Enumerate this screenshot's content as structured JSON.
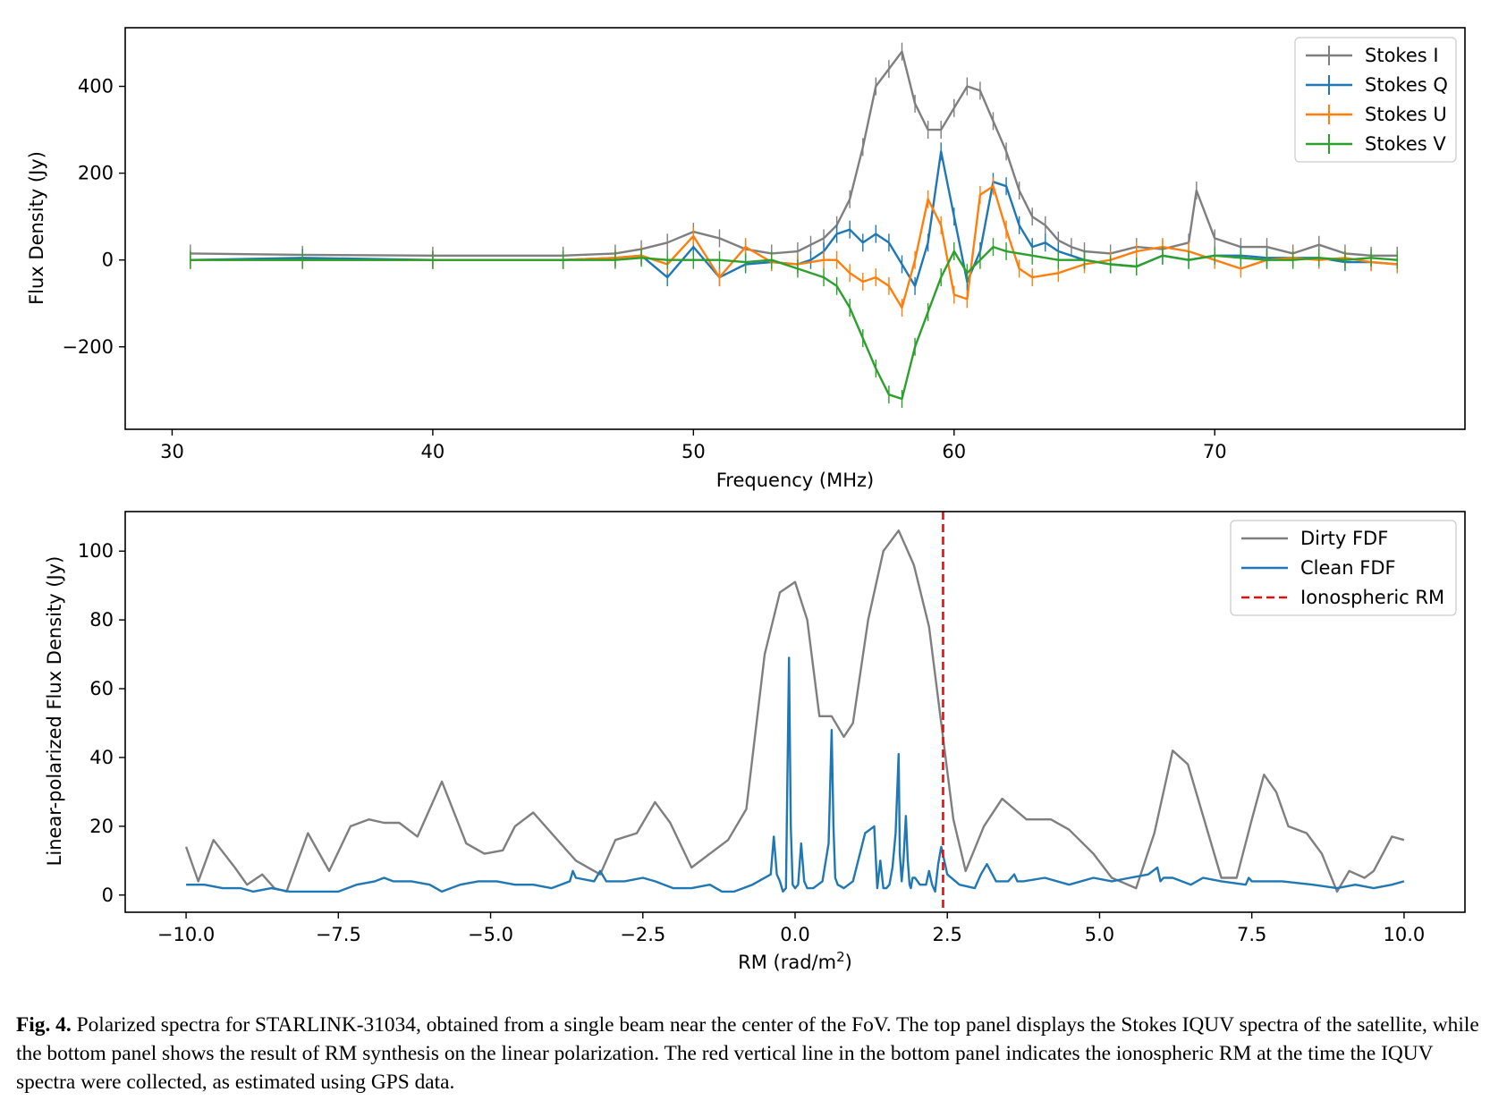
{
  "chart_data": [
    {
      "type": "line",
      "panel": "top",
      "xlabel": "Frequency (MHz)",
      "ylabel": "Flux Density (Jy)",
      "xlim": [
        28.2,
        79.6
      ],
      "ylim": [
        -390,
        535
      ],
      "xticks": [
        30,
        40,
        50,
        60,
        70
      ],
      "yticks": [
        -200,
        0,
        200,
        400
      ],
      "error_bars": true,
      "legend_position": "upper right",
      "series": [
        {
          "name": "Stokes I",
          "color": "#7f7f7f",
          "x": [
            30.7,
            35,
            40,
            45,
            47,
            48,
            49,
            50,
            51,
            52,
            53,
            54,
            54.5,
            55,
            55.5,
            56,
            56.5,
            57,
            57.5,
            58,
            58.5,
            59,
            59.5,
            60,
            60.5,
            61,
            61.5,
            62,
            62.5,
            63,
            63.5,
            64,
            64.5,
            65,
            66,
            67,
            68,
            69,
            69.3,
            70,
            71,
            72,
            73,
            74,
            75,
            76,
            77
          ],
          "y": [
            15,
            12,
            10,
            10,
            15,
            25,
            40,
            65,
            50,
            25,
            15,
            20,
            35,
            50,
            80,
            140,
            260,
            400,
            440,
            480,
            360,
            300,
            300,
            350,
            400,
            390,
            320,
            250,
            160,
            100,
            80,
            45,
            30,
            20,
            15,
            30,
            25,
            40,
            160,
            50,
            30,
            30,
            15,
            35,
            15,
            10,
            10
          ]
        },
        {
          "name": "Stokes Q",
          "color": "#1f77b4",
          "x": [
            30.7,
            35,
            40,
            45,
            47,
            48,
            49,
            50,
            51,
            52,
            53,
            54,
            54.5,
            55,
            55.5,
            56,
            56.5,
            57,
            57.5,
            58,
            58.5,
            59,
            59.5,
            60,
            60.5,
            61,
            61.5,
            62,
            62.5,
            63,
            63.5,
            64,
            65,
            66,
            67,
            68,
            69,
            70,
            71,
            72,
            73,
            74,
            75,
            76,
            77
          ],
          "y": [
            0,
            5,
            0,
            0,
            5,
            10,
            -40,
            30,
            -40,
            -10,
            -5,
            -10,
            0,
            20,
            60,
            70,
            40,
            60,
            40,
            -10,
            -60,
            40,
            250,
            100,
            -50,
            20,
            180,
            170,
            80,
            30,
            40,
            20,
            0,
            -10,
            -15,
            10,
            0,
            10,
            10,
            5,
            5,
            5,
            -5,
            -5,
            -10
          ]
        },
        {
          "name": "Stokes U",
          "color": "#ff7f0e",
          "x": [
            30.7,
            35,
            40,
            45,
            47,
            48,
            49,
            50,
            51,
            52,
            53,
            54,
            55,
            55.5,
            56,
            56.5,
            57,
            57.5,
            58,
            58.5,
            59,
            59.5,
            60,
            60.5,
            61,
            61.5,
            62,
            62.5,
            63,
            64,
            65,
            66,
            67,
            68,
            69,
            70,
            71,
            72,
            73,
            74,
            75,
            76,
            77
          ],
          "y": [
            0,
            0,
            0,
            0,
            5,
            10,
            -10,
            55,
            -40,
            30,
            -5,
            -10,
            0,
            0,
            -30,
            -50,
            -40,
            -60,
            -110,
            0,
            140,
            80,
            -80,
            -90,
            150,
            170,
            70,
            -20,
            -40,
            -30,
            -10,
            0,
            20,
            30,
            20,
            0,
            -20,
            0,
            5,
            0,
            5,
            -5,
            -10
          ]
        },
        {
          "name": "Stokes V",
          "color": "#2ca02c",
          "x": [
            30.7,
            35,
            40,
            45,
            47,
            48,
            49,
            50,
            51,
            52,
            53,
            54,
            55,
            55.5,
            56,
            56.5,
            57,
            57.5,
            58,
            58.5,
            59,
            59.5,
            60,
            60.5,
            61,
            61.5,
            62,
            63,
            64,
            65,
            66,
            67,
            68,
            69,
            70,
            71,
            72,
            73,
            74,
            75,
            76,
            77
          ],
          "y": [
            0,
            0,
            0,
            0,
            0,
            5,
            0,
            0,
            0,
            -5,
            0,
            -20,
            -40,
            -60,
            -110,
            -180,
            -250,
            -310,
            -320,
            -200,
            -120,
            -40,
            20,
            -30,
            0,
            30,
            20,
            10,
            0,
            0,
            -10,
            -15,
            10,
            0,
            10,
            5,
            0,
            0,
            5,
            0,
            5,
            0
          ]
        }
      ]
    },
    {
      "type": "line",
      "panel": "bottom",
      "xlabel_main": "RM (rad/m",
      "xlabel_sup": "2",
      "xlabel_end": ")",
      "ylabel": "Linear-polarized Flux Density (Jy)",
      "xlim": [
        -11,
        11
      ],
      "ylim": [
        -5,
        111.5
      ],
      "xticks": [
        -10.0,
        -7.5,
        -5.0,
        -2.5,
        0.0,
        2.5,
        5.0,
        7.5,
        10.0
      ],
      "xtick_labels": [
        "−10.0",
        "−7.5",
        "−5.0",
        "−2.5",
        "0.0",
        "2.5",
        "5.0",
        "7.5",
        "10.0"
      ],
      "yticks": [
        0,
        20,
        40,
        60,
        80,
        100
      ],
      "legend_position": "upper right",
      "series": [
        {
          "name": "Dirty FDF",
          "color": "#7f7f7f",
          "x": [
            -10,
            -9.8,
            -9.55,
            -9.2,
            -9.0,
            -8.75,
            -8.55,
            -8.35,
            -8.0,
            -7.65,
            -7.3,
            -7.0,
            -6.75,
            -6.5,
            -6.2,
            -5.8,
            -5.4,
            -5.1,
            -4.8,
            -4.6,
            -4.3,
            -4.0,
            -3.6,
            -3.2,
            -2.95,
            -2.6,
            -2.3,
            -2.05,
            -1.7,
            -1.4,
            -1.1,
            -0.8,
            -0.5,
            -0.25,
            0.0,
            0.2,
            0.4,
            0.6,
            0.8,
            0.95,
            1.2,
            1.45,
            1.7,
            1.95,
            2.2,
            2.4,
            2.6,
            2.8,
            3.1,
            3.4,
            3.8,
            4.2,
            4.5,
            4.9,
            5.2,
            5.6,
            5.9,
            6.2,
            6.45,
            6.75,
            7.0,
            7.25,
            7.5,
            7.7,
            7.9,
            8.1,
            8.4,
            8.65,
            8.9,
            9.1,
            9.35,
            9.5,
            9.8,
            10.0
          ],
          "y": [
            14,
            4,
            16,
            8,
            3,
            6,
            2,
            1,
            18,
            7,
            20,
            22,
            21,
            21,
            17,
            33,
            15,
            12,
            13,
            20,
            24,
            18,
            10,
            6,
            16,
            18,
            27,
            21,
            8,
            12,
            16,
            25,
            70,
            88,
            91,
            80,
            52,
            52,
            46,
            50,
            80,
            100,
            106,
            96,
            78,
            50,
            22,
            7,
            20,
            28,
            22,
            22,
            19,
            12,
            5,
            2,
            18,
            42,
            38,
            20,
            5,
            5,
            22,
            35,
            30,
            20,
            18,
            12,
            1,
            7,
            5,
            7,
            17,
            16
          ]
        },
        {
          "name": "Clean FDF",
          "color": "#1f77b4",
          "x": [
            -10,
            -9.7,
            -9.4,
            -9.1,
            -8.9,
            -8.6,
            -8.3,
            -8.0,
            -7.7,
            -7.5,
            -7.2,
            -6.9,
            -6.75,
            -6.6,
            -6.3,
            -6.0,
            -5.8,
            -5.5,
            -5.2,
            -4.9,
            -4.6,
            -4.3,
            -4.0,
            -3.7,
            -3.65,
            -3.6,
            -3.3,
            -3.2,
            -3.1,
            -2.8,
            -2.5,
            -2.3,
            -2.0,
            -1.7,
            -1.4,
            -1.2,
            -1.0,
            -0.7,
            -0.4,
            -0.35,
            -0.3,
            -0.25,
            -0.2,
            -0.15,
            -0.1,
            -0.07,
            -0.04,
            0.0,
            0.05,
            0.1,
            0.15,
            0.2,
            0.3,
            0.45,
            0.55,
            0.6,
            0.63,
            0.66,
            0.7,
            0.8,
            0.95,
            1.15,
            1.3,
            1.35,
            1.4,
            1.45,
            1.5,
            1.55,
            1.6,
            1.65,
            1.7,
            1.72,
            1.75,
            1.78,
            1.82,
            1.85,
            1.88,
            1.9,
            1.93,
            1.97,
            2.05,
            2.15,
            2.2,
            2.25,
            2.3,
            2.35,
            2.4,
            2.5,
            2.7,
            2.95,
            3.05,
            3.15,
            3.3,
            3.5,
            3.6,
            3.65,
            3.75,
            4.1,
            4.5,
            4.9,
            5.2,
            5.5,
            5.8,
            5.95,
            6.0,
            6.05,
            6.2,
            6.5,
            6.7,
            7.0,
            7.4,
            7.45,
            7.5,
            8.0,
            8.5,
            8.9,
            9.2,
            9.5,
            9.8,
            10.0
          ],
          "y": [
            3,
            3,
            2,
            2,
            1,
            2,
            1,
            1,
            1,
            1,
            3,
            4,
            5,
            4,
            4,
            3,
            1,
            3,
            4,
            4,
            3,
            3,
            2,
            4,
            7,
            5,
            4,
            7,
            4,
            4,
            5,
            4,
            2,
            2,
            3,
            1,
            1,
            3,
            6,
            17,
            6,
            4,
            1,
            2,
            69,
            20,
            3,
            2,
            3,
            15,
            4,
            2,
            2,
            4,
            15,
            48,
            20,
            5,
            3,
            2,
            4,
            18,
            20,
            2,
            10,
            2,
            2,
            3,
            8,
            18,
            41,
            12,
            4,
            10,
            23,
            10,
            3,
            2,
            5,
            5,
            3,
            3,
            7,
            3,
            1,
            9,
            14,
            6,
            3,
            2,
            6,
            9,
            4,
            4,
            6,
            4,
            4,
            5,
            3,
            5,
            4,
            5,
            6,
            8,
            4,
            5,
            5,
            3,
            5,
            4,
            3,
            5,
            4,
            4,
            3,
            2,
            3,
            2,
            3,
            4
          ]
        },
        {
          "name": "Ionospheric RM",
          "color": "#e01010",
          "linestyle": "dashed",
          "x_value": 2.43
        }
      ]
    }
  ],
  "caption": {
    "label": "Fig. 4.",
    "text": " Polarized spectra for STARLINK-31034, obtained from a single beam near the center of the FoV. The top panel displays the Stokes IQUV spectra of the satellite, while the bottom panel shows the result of RM synthesis on the linear polarization. The red vertical line in the bottom panel indicates the ionospheric RM at the time the IQUV spectra were collected, as estimated using GPS data."
  }
}
